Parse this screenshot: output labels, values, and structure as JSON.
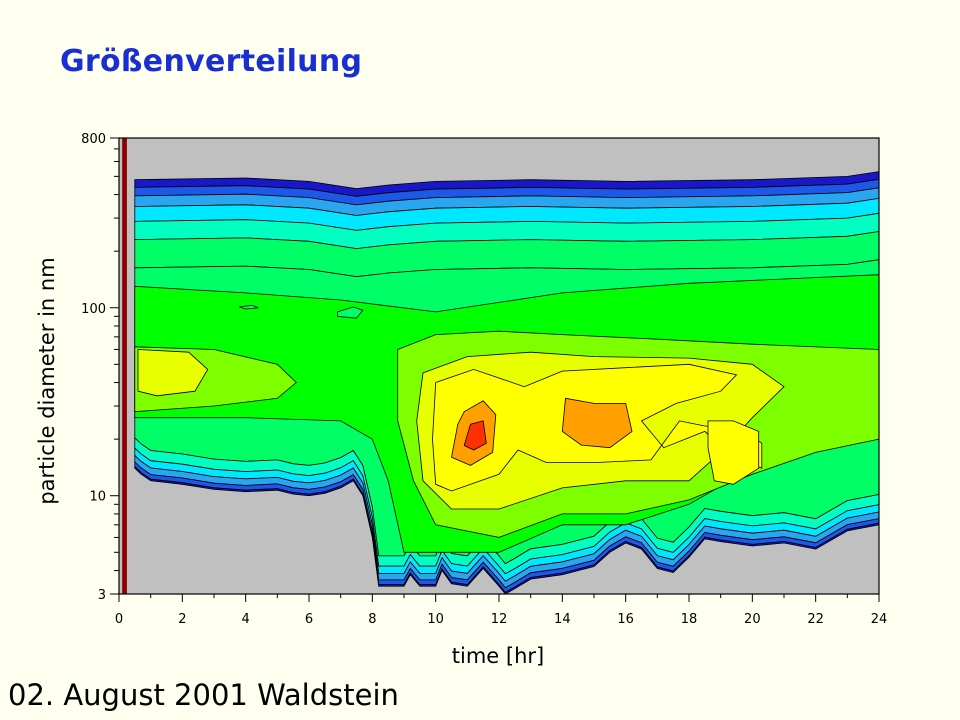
{
  "slide": {
    "title": "Größenverteilung",
    "caption": "02. August 2001 Waldstein"
  },
  "chart_data": {
    "type": "heatmap",
    "subtype": "filled-contour",
    "title": "",
    "xlabel": "time [hr]",
    "ylabel": "particle diameter in nm",
    "xlim": [
      0,
      24
    ],
    "ylim": [
      3,
      800
    ],
    "yscale": "log",
    "xticks": [
      0,
      2,
      4,
      6,
      8,
      10,
      12,
      14,
      16,
      18,
      20,
      22,
      24
    ],
    "yticks": [
      3,
      10,
      100,
      800
    ],
    "grid": false,
    "legend": "none",
    "background_color": "#c0c0c0",
    "colors": {
      "level1": "#1818c8",
      "level2": "#1e58e8",
      "level3": "#2aa6f0",
      "level4": "#00e8ff",
      "level5": "#00ffc0",
      "level6": "#00ff66",
      "level7": "#00ff00",
      "level8": "#7dff00",
      "level9": "#e8ff00",
      "level10": "#ffff00",
      "level11": "#ffa000",
      "level12": "#ff3000",
      "data_gap_bar": "#8b0000"
    },
    "data_gap": {
      "x": [
        0.1,
        0.25
      ]
    },
    "data_coverage": {
      "x": [
        0.5,
        24
      ],
      "lower_d": "3-20",
      "upper_d": "330-560"
    },
    "regions": [
      {
        "level": "level12",
        "peak_time": 11.3,
        "peak_diameter": 20
      },
      {
        "level": "level11",
        "time_range": [
          10.9,
          11.9
        ],
        "diameter_range": [
          14,
          30
        ]
      },
      {
        "level": "level11",
        "time_range": [
          14.0,
          16.2
        ],
        "diameter_range": [
          18,
          30
        ]
      },
      {
        "level": "level10",
        "time_range": [
          19.0,
          20.3
        ],
        "diameter_range": [
          11,
          23
        ]
      },
      {
        "level": "level10",
        "time_range": [
          10.0,
          20.0
        ],
        "diameter_range": [
          10,
          45
        ]
      },
      {
        "level": "level9",
        "time_range": [
          0.6,
          2.8
        ],
        "diameter_range": [
          30,
          60
        ]
      }
    ]
  }
}
